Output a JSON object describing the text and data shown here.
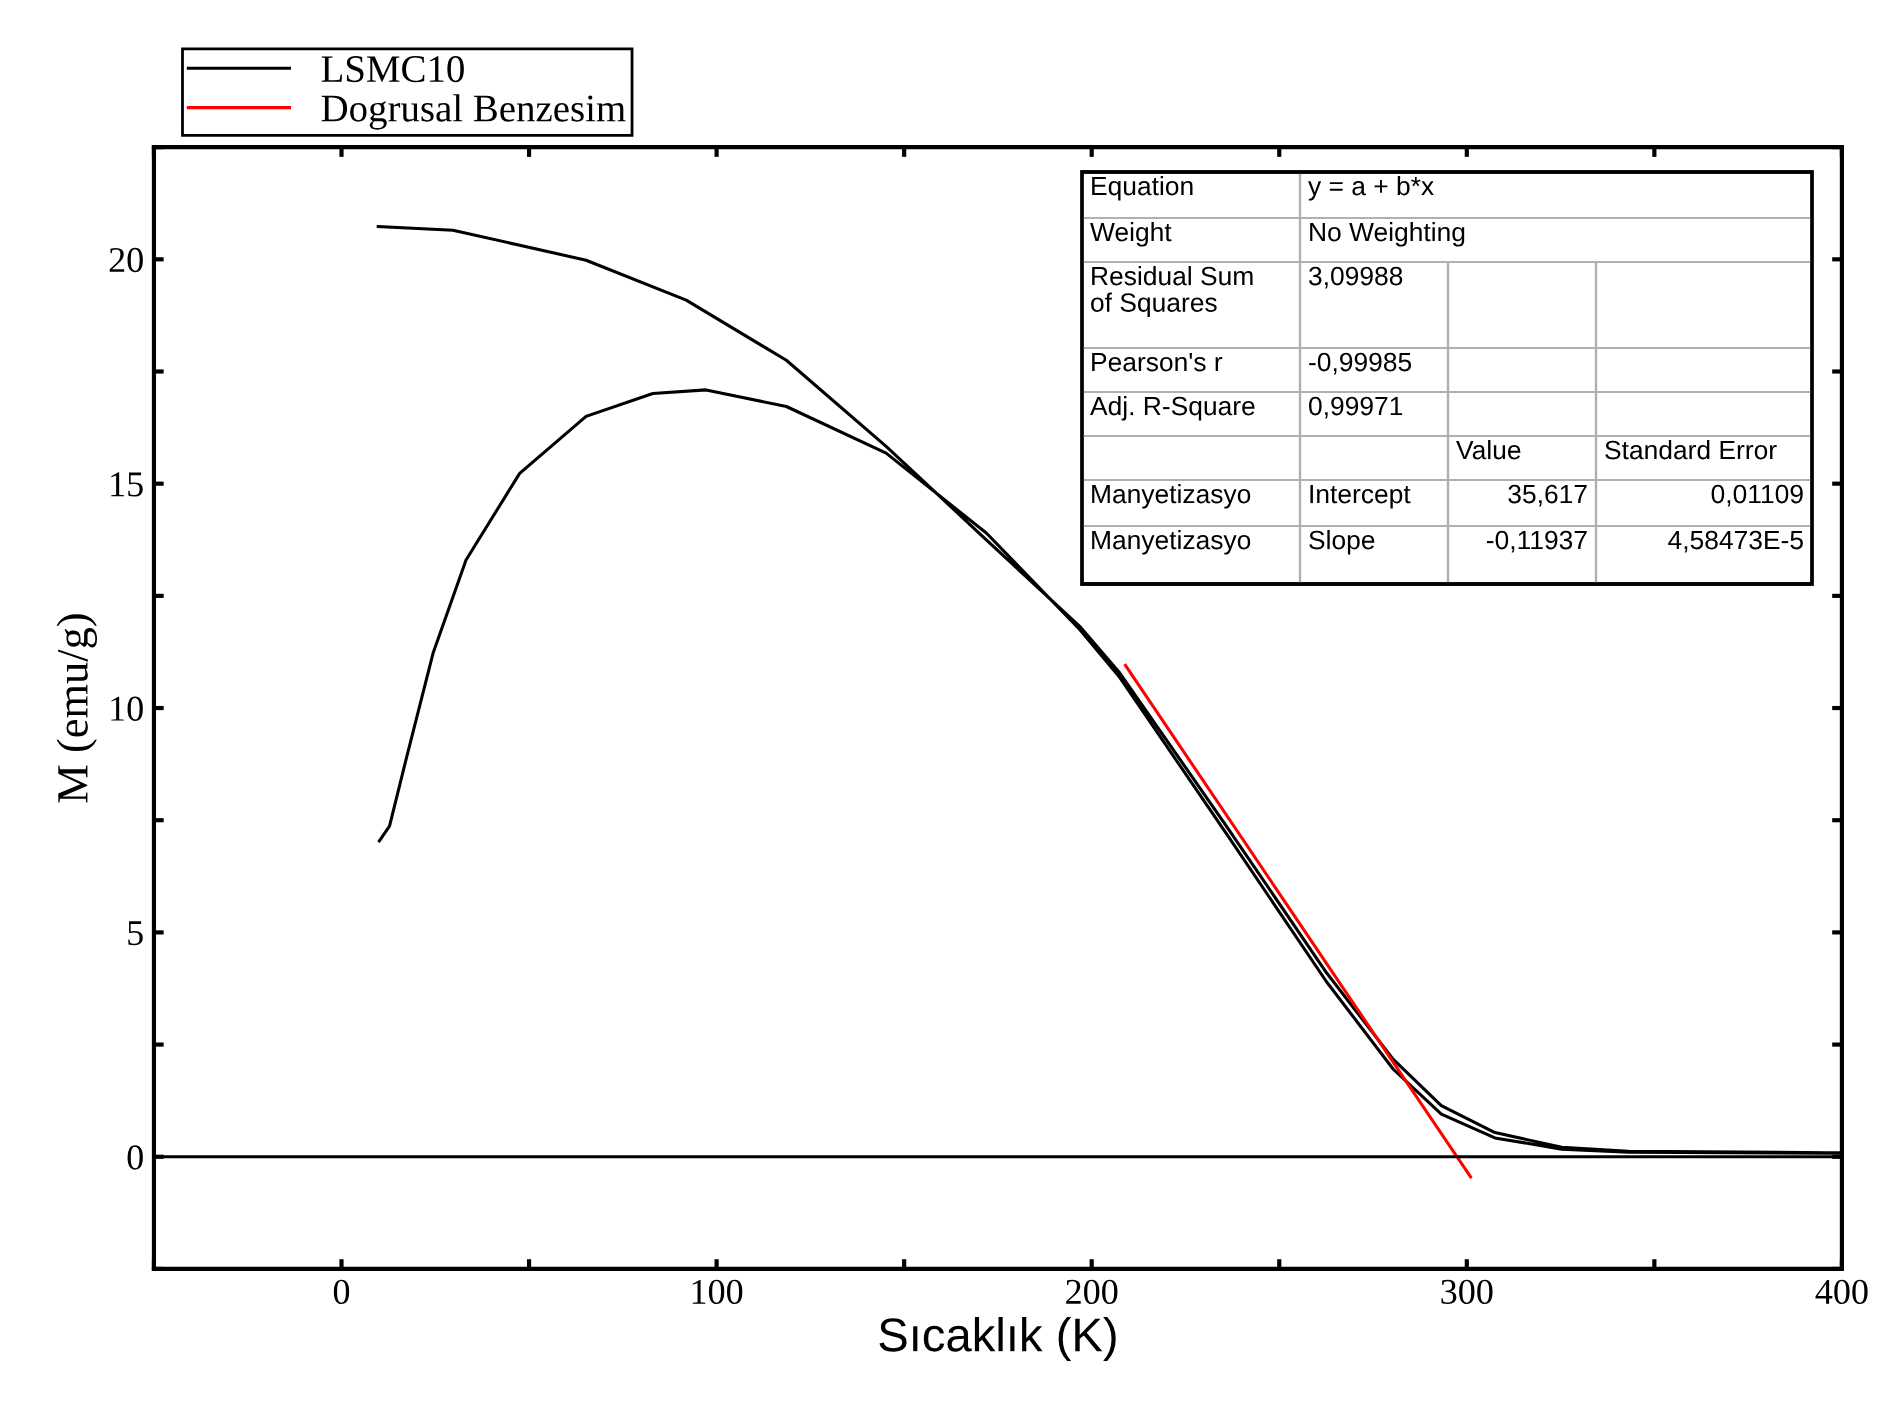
{
  "chart_data": {
    "type": "line",
    "xlabel": "Sıcaklık (K)",
    "ylabel": "M (emu/g)",
    "xlim": [
      -50,
      400
    ],
    "ylim": [
      -2.5,
      22.5
    ],
    "xticks": [
      {
        "value": -50,
        "label": null
      },
      0,
      {
        "value": 50,
        "label": null
      },
      100,
      {
        "value": 150,
        "label": null
      },
      200,
      {
        "value": 250,
        "label": null
      },
      300,
      {
        "value": 350,
        "label": null
      },
      400
    ],
    "yticks": [
      {
        "value": -2.5,
        "label": null
      },
      0,
      {
        "value": 2.5,
        "label": null
      },
      5,
      {
        "value": 7.5,
        "label": null
      },
      10,
      {
        "value": 12.5,
        "label": null
      },
      15,
      {
        "value": 17.5,
        "label": null
      },
      20,
      {
        "value": 22.5,
        "label": null
      }
    ],
    "grid": false,
    "legend": "top left",
    "marker": "none",
    "line_style": "solid",
    "series": [
      {
        "name": "LSMC10",
        "color": "#000000",
        "x": [
          9.8,
          29.7,
          65.2,
          91.9,
          118.6,
          145.2,
          171.9,
          196.8,
          207.5,
          235.9,
          262.6,
          280.4,
          293.2,
          307.5,
          325.3,
          343.1,
          396.4,
          400,
          null,
          10.1,
          12.8,
          17.2,
          24.4,
          33.2,
          47.5,
          65.2,
          83.0,
          97.2,
          118.6,
          145.2,
          171.9,
          196.8,
          207.5,
          235.9,
          262.6,
          280.4,
          293.2,
          307.5,
          325.3,
          343.1,
          396.4,
          400
        ],
        "values": [
          20.73,
          20.65,
          19.98,
          19.09,
          17.75,
          15.83,
          13.75,
          11.82,
          10.78,
          7.37,
          4.1,
          2.17,
          1.14,
          0.54,
          0.21,
          0.12,
          0.09,
          0.09,
          null,
          7.04,
          7.37,
          8.85,
          11.22,
          13.3,
          15.23,
          16.5,
          17.01,
          17.09,
          16.72,
          15.68,
          13.9,
          11.75,
          10.68,
          7.2,
          3.9,
          1.95,
          0.95,
          0.42,
          0.17,
          0.1,
          0.08,
          0.08
        ]
      },
      {
        "name": "Dogrusal Benzesim",
        "color": "#ff0000",
        "x": [
          209,
          301
        ],
        "values": [
          10.95,
          -0.45
        ]
      }
    ],
    "ref_lines": [
      {
        "axis": "y",
        "value": 0,
        "color": "#000000"
      }
    ],
    "annotations": [
      "Equation",
      "y = a + b*x",
      "Weight",
      "No Weighting",
      "Residual Sum\nof Squares",
      "3,09988",
      "Pearson's r",
      "-0,99985",
      "Adj. R-Square",
      "0,99971",
      "Value",
      "Standard Error",
      "Manyetizasyo",
      "Intercept",
      "35,617",
      "0,01109",
      "Manyetizasyo",
      "Slope",
      "-0,11937",
      "4,58473E-5"
    ]
  }
}
